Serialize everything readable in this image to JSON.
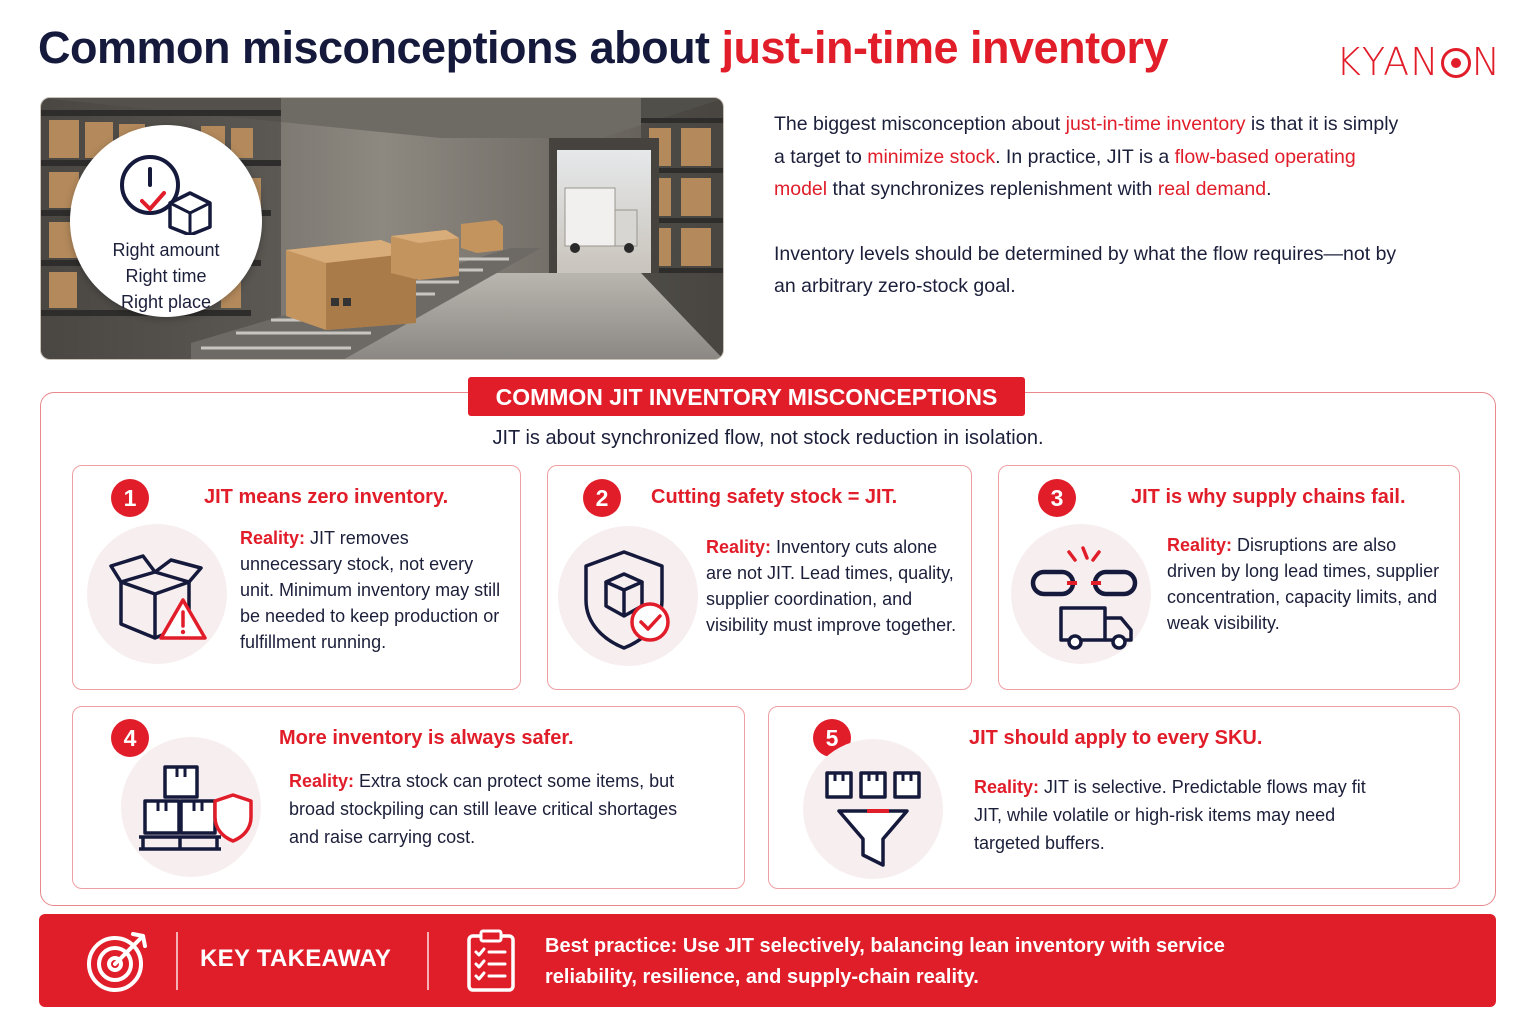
{
  "title": {
    "part1": "Common misconceptions about ",
    "highlight": "just-in-time inventory"
  },
  "logo": {
    "before": "KYAN",
    "after": "N"
  },
  "badge": {
    "lines": [
      "Right amount",
      "Right time",
      "Right place"
    ]
  },
  "intro": {
    "p1": [
      {
        "t": "The biggest misconception about ",
        "h": false
      },
      {
        "t": "just-in-time inventory",
        "h": true
      },
      {
        "t": " is that it is simply a target to ",
        "h": false
      },
      {
        "t": "minimize stock",
        "h": true
      },
      {
        "t": ". In practice, JIT is a ",
        "h": false
      },
      {
        "t": "flow-based operating model",
        "h": true
      },
      {
        "t": " that synchronizes replenishment with ",
        "h": false
      },
      {
        "t": "real demand",
        "h": true
      },
      {
        "t": ".",
        "h": false
      }
    ],
    "p2": "Inventory levels should be determined by what the flow requires—not by an arbitrary zero-stock goal."
  },
  "section": {
    "heading": "COMMON JIT INVENTORY MISCONCEPTIONS",
    "subtitle": "JIT is about synchronized flow, not stock reduction in isolation."
  },
  "misconceptions": [
    {
      "number": "1",
      "title": "JIT means zero inventory.",
      "reality_label": "Reality:",
      "reality": " JIT removes unnecessary stock, not every unit. Minimum inventory may still be needed to keep production or fulfillment running.",
      "icon": "open-box-warning-icon"
    },
    {
      "number": "2",
      "title": "Cutting safety stock = JIT.",
      "reality_label": "Reality:",
      "reality": " Inventory cuts alone are not JIT. Lead times, quality, supplier coordination, and visibility must improve together.",
      "icon": "shield-box-check-icon"
    },
    {
      "number": "3",
      "title": "JIT is why supply chains fail.",
      "reality_label": "Reality:",
      "reality": " Disruptions are also driven by long lead times, supplier concentration, capacity limits, and weak visibility.",
      "icon": "broken-chain-truck-icon"
    },
    {
      "number": "4",
      "title": "More inventory is always safer.",
      "reality_label": "Reality:",
      "reality": " Extra stock can protect some items, but broad stockpiling can still leave critical shortages and raise carrying cost.",
      "icon": "stacked-boxes-shield-icon"
    },
    {
      "number": "5",
      "title": "JIT should apply to every SKU.",
      "reality_label": "Reality:",
      "reality": " JIT is selective. Predictable flows may fit JIT, while volatile or high-risk items may need targeted buffers.",
      "icon": "boxes-funnel-icon"
    }
  ],
  "takeaway": {
    "label": "KEY TAKEAWAY",
    "text": "Best practice: Use JIT selectively, balancing lean inventory with service reliability, resilience, and supply-chain reality."
  },
  "colors": {
    "accent": "#e11d2a",
    "navy": "#151a3c",
    "card_border": "#ef9fa2",
    "icon_bg": "#f7eeef"
  }
}
